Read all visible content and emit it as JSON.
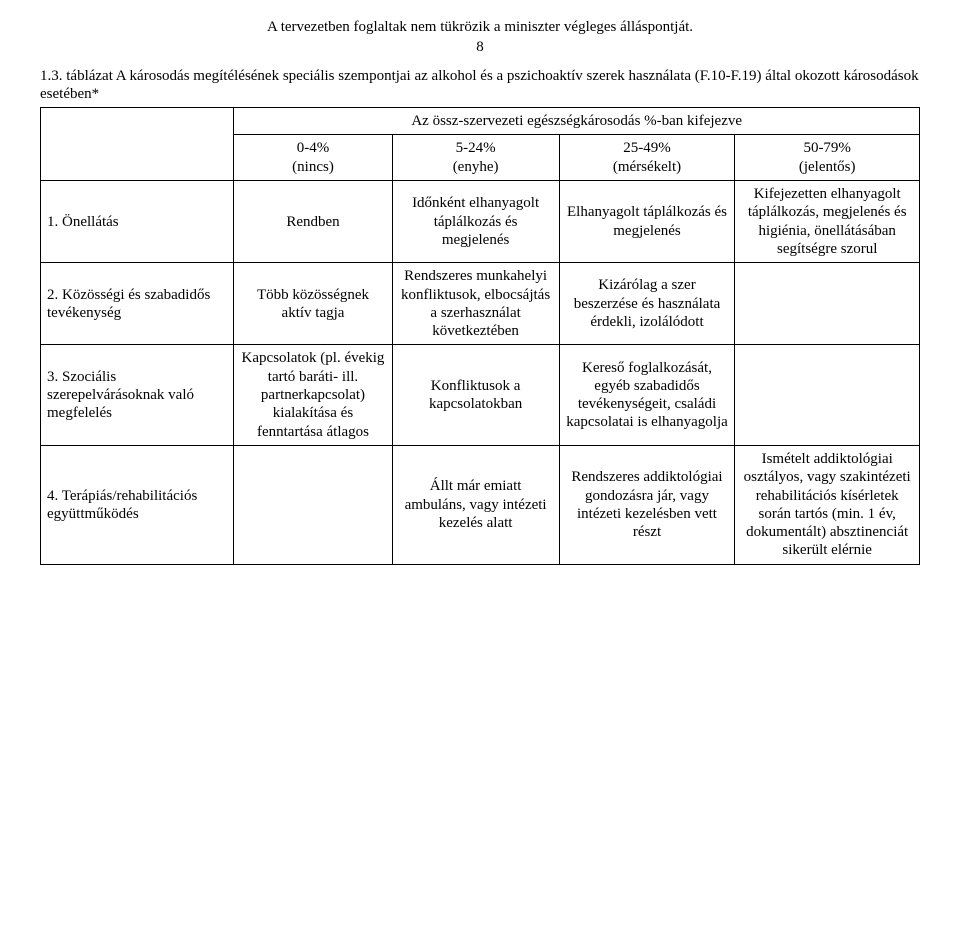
{
  "header": {
    "note": "A tervezetben foglaltak nem tükrözik a miniszter végleges álláspontját.",
    "pageNumber": "8"
  },
  "caption": "1.3. táblázat A károsodás megítélésének speciális szempontjai az alkohol és a pszichoaktív szerek használata (F.10-F.19) által okozott károsodások esetében*",
  "superHeader": "Az össz-szervezeti egészségkárosodás %-ban kifejezve",
  "columns": {
    "c1": "0-4%\n(nincs)",
    "c2": "5-24%\n(enyhe)",
    "c3": "25-49%\n(mérsékelt)",
    "c4": "50-79%\n(jelentős)"
  },
  "rows": [
    {
      "label": "1. Önellátás",
      "c1": "Rendben",
      "c2": "Időnként elhanyagolt táplálkozás és megjelenés",
      "c3": "Elhanyagolt táplálkozás és megjelenés",
      "c4": "Kifejezetten elhanyagolt táplálkozás, megjelenés és higiénia, önellátásában segítségre szorul"
    },
    {
      "label": "2. Közösségi és szabadidős tevékenység",
      "c1": "Több közösségnek aktív tagja",
      "c2": "Rendszeres munkahelyi konfliktusok, elbocsájtás a szerhasználat következtében",
      "c3": "Kizárólag a szer beszerzése és használata érdekli, izolálódott",
      "c4": ""
    },
    {
      "label": "3. Szociális szerepelvárásoknak való megfelelés",
      "c1": "Kapcsolatok (pl. évekig tartó baráti- ill. partnerkapcsolat) kialakítása és fenntartása átlagos",
      "c2": "Konfliktusok a kapcsolatokban",
      "c3": "Kereső foglalkozását, egyéb szabadidős tevékenységeit, családi kapcsolatai is elhanyagolja",
      "c4": ""
    },
    {
      "label": "4. Terápiás/rehabilitációs együttműködés",
      "c1": "",
      "c2": "Állt már emiatt ambuláns, vagy intézeti kezelés alatt",
      "c3": "Rendszeres addiktológiai gondozásra jár, vagy intézeti kezelésben vett részt",
      "c4": "Ismételt addiktológiai osztályos, vagy szakintézeti rehabilitációs kísérletek során tartós (min. 1 év, dokumentált) absztinenciát sikerült elérnie"
    }
  ]
}
